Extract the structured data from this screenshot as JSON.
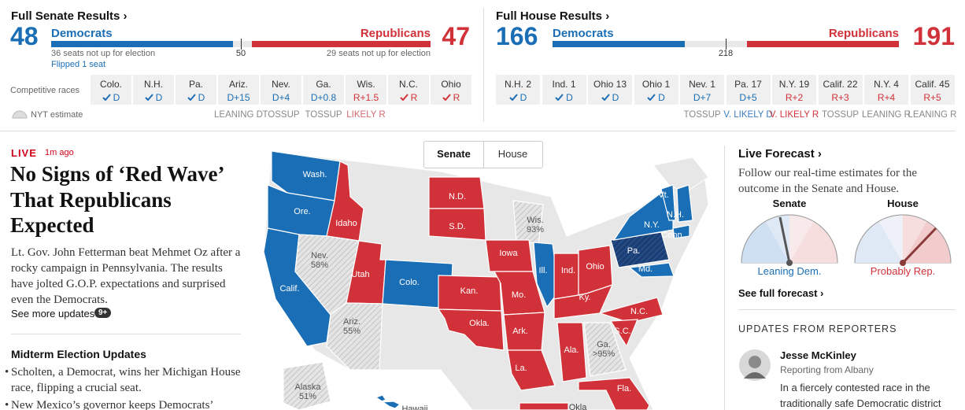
{
  "senate": {
    "title": "Full Senate Results ›",
    "dem": {
      "seats": 48,
      "name": "Democrats",
      "note": "36 seats not up for election",
      "flipped": "Flipped 1 seat"
    },
    "rep": {
      "seats": 47,
      "name": "Republicans",
      "note": "29 seats not up for election"
    },
    "majority": 50,
    "races_label": "Competitive races",
    "legend": "NYT estimate",
    "races": [
      {
        "name": "Colo.",
        "result": "D",
        "called": true,
        "party": "D"
      },
      {
        "name": "N.H.",
        "result": "D",
        "called": true,
        "party": "D"
      },
      {
        "name": "Pa.",
        "result": "D",
        "called": true,
        "party": "D"
      },
      {
        "name": "Ariz.",
        "result": "D+15",
        "called": false,
        "party": "D",
        "rating": "LEANING D",
        "rating_color": "#888888"
      },
      {
        "name": "Nev.",
        "result": "D+4",
        "called": false,
        "party": "D",
        "rating": "TOSSUP",
        "rating_color": "#888888"
      },
      {
        "name": "Ga.",
        "result": "D+0.8",
        "called": false,
        "party": "D",
        "rating": "TOSSUP",
        "rating_color": "#888888"
      },
      {
        "name": "Wis.",
        "result": "R+1.5",
        "called": false,
        "party": "R",
        "rating": "LIKELY R",
        "rating_color": "#d46a6f"
      },
      {
        "name": "N.C.",
        "result": "R",
        "called": true,
        "party": "R"
      },
      {
        "name": "Ohio",
        "result": "R",
        "called": true,
        "party": "R"
      }
    ]
  },
  "house": {
    "title": "Full House Results ›",
    "dem": {
      "seats": 166,
      "name": "Democrats"
    },
    "rep": {
      "seats": 191,
      "name": "Republicans"
    },
    "majority": 218,
    "races": [
      {
        "name": "N.H. 2",
        "result": "D",
        "called": true,
        "party": "D"
      },
      {
        "name": "Ind. 1",
        "result": "D",
        "called": true,
        "party": "D"
      },
      {
        "name": "Ohio 13",
        "result": "D",
        "called": true,
        "party": "D"
      },
      {
        "name": "Ohio 1",
        "result": "D",
        "called": true,
        "party": "D"
      },
      {
        "name": "Nev. 1",
        "result": "D+7",
        "called": false,
        "party": "D",
        "rating": "TOSSUP",
        "rating_color": "#888888"
      },
      {
        "name": "Pa. 17",
        "result": "D+5",
        "called": false,
        "party": "D",
        "rating": "V. LIKELY D",
        "rating_color": "#3b7cc0"
      },
      {
        "name": "N.Y. 19",
        "result": "R+2",
        "called": false,
        "party": "R",
        "rating": "V. LIKELY R",
        "rating_color": "#d13239"
      },
      {
        "name": "Calif. 22",
        "result": "R+3",
        "called": false,
        "party": "R",
        "rating": "TOSSUP",
        "rating_color": "#888888"
      },
      {
        "name": "N.Y. 4",
        "result": "R+4",
        "called": false,
        "party": "R",
        "rating": "LEANING R",
        "rating_color": "#888888"
      },
      {
        "name": "Calif. 45",
        "result": "R+5",
        "called": false,
        "party": "R",
        "rating": "LEANING R",
        "rating_color": "#888888"
      }
    ]
  },
  "toggle": [
    "Senate",
    "House"
  ],
  "story": {
    "live": "LIVE",
    "time": "1m ago",
    "headline": "No Signs of ‘Red Wave’ That Republicans Expected",
    "summary": "Lt. Gov. John Fetterman beat Mehmet Oz after a rocky campaign in Pennsylvania. The results have jolted G.O.P. expectations and surprised even the Democrats.",
    "more": "See more updates",
    "badge": "9+"
  },
  "updates": {
    "title": "Midterm Election Updates",
    "items": [
      "Scholten, a Democrat, wins her Michigan House race, flipping a crucial seat.",
      "New Mexico’s governor keeps Democrats’"
    ]
  },
  "map": {
    "states": [
      {
        "label": "Wash.",
        "party": "D"
      },
      {
        "label": "Ore.",
        "party": "D"
      },
      {
        "label": "Calif.",
        "party": "D"
      },
      {
        "label": "Idaho",
        "party": "R"
      },
      {
        "label": "Nev.",
        "estimate": "58%",
        "party": "tossup"
      },
      {
        "label": "Utah",
        "party": "R"
      },
      {
        "label": "Ariz.",
        "estimate": "55%",
        "party": "tossup"
      },
      {
        "label": "Colo.",
        "party": "D"
      },
      {
        "label": "N.D.",
        "party": "R"
      },
      {
        "label": "S.D.",
        "party": "R"
      },
      {
        "label": "Kan.",
        "party": "R"
      },
      {
        "label": "Okla.",
        "party": "R"
      },
      {
        "label": "Wis.",
        "estimate": "93%",
        "party": "tossup"
      },
      {
        "label": "Iowa",
        "party": "R"
      },
      {
        "label": "Mo.",
        "party": "R"
      },
      {
        "label": "Ark.",
        "party": "R"
      },
      {
        "label": "La.",
        "party": "R"
      },
      {
        "label": "Ill.",
        "party": "D"
      },
      {
        "label": "Ind.",
        "party": "R"
      },
      {
        "label": "Ohio",
        "party": "R"
      },
      {
        "label": "Ky.",
        "party": "R"
      },
      {
        "label": "Ala.",
        "party": "R"
      },
      {
        "label": "Ga.",
        "estimate": ">95%",
        "party": "tossup"
      },
      {
        "label": "Fla.",
        "party": "R"
      },
      {
        "label": "N.C.",
        "party": "R"
      },
      {
        "label": "S.C.",
        "party": "R"
      },
      {
        "label": "Pa.",
        "party": "D",
        "flip": true
      },
      {
        "label": "Md.",
        "party": "D"
      },
      {
        "label": "N.Y.",
        "party": "D"
      },
      {
        "label": "Conn.",
        "party": "D"
      },
      {
        "label": "Vt.",
        "party": "D"
      },
      {
        "label": "N.H.",
        "party": "D"
      },
      {
        "label": "Alaska",
        "estimate": "51%",
        "party": "tossup"
      },
      {
        "label": "Hawaii",
        "party": "D"
      },
      {
        "label": "Okla",
        "party": "R"
      }
    ]
  },
  "forecast": {
    "title": "Live Forecast ›",
    "text": "Follow our real-time estimates for the outcome in the Senate and House.",
    "senate": {
      "label": "Senate",
      "status": "Leaning Dem."
    },
    "house": {
      "label": "House",
      "status": "Probably Rep."
    },
    "link": "See full forecast ›"
  },
  "reporters": {
    "title": "UPDATES FROM REPORTERS",
    "name": "Jesse McKinley",
    "place": "Reporting from Albany",
    "text": "In a fiercely contested race in the traditionally safe Democratic district"
  }
}
